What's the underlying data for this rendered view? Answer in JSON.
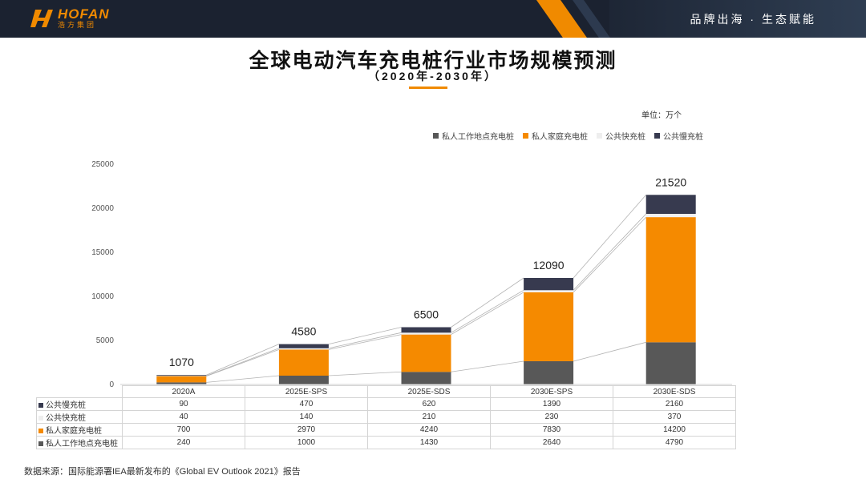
{
  "header": {
    "logo_text": "HOFAN",
    "logo_subtext": "浩方集团",
    "slogan": "品牌出海 · 生态赋能"
  },
  "colors": {
    "accent": "#f08a00",
    "header_bg": "#1b2230",
    "public_slow": "#373a4f",
    "public_fast": "#f2f2f2",
    "home": "#f58a00",
    "workplace": "#585858"
  },
  "unit_label": "单位：万个",
  "source_note": "数据来源：国际能源署IEA最新发布的《Global EV Outlook 2021》报告",
  "chart_data": {
    "type": "bar",
    "stacked": true,
    "title": "全球电动汽车充电桩行业市场规模预测",
    "subtitle": "（2020年-2030年）",
    "xlabel": "",
    "ylabel": "",
    "categories": [
      "2020A",
      "2025E-SPS",
      "2025E-SDS",
      "2030E-SPS",
      "2030E-SDS"
    ],
    "ylim": [
      0,
      25000
    ],
    "yticks": [
      "0",
      "5000",
      "10000",
      "15000",
      "20000",
      "25000"
    ],
    "legend_order": [
      "私人工作地点充电桩",
      "私人家庭充电桩",
      "公共快充桩",
      "公共慢充桩"
    ],
    "legend_placement": "top-right",
    "grid": false,
    "totals": [
      1070,
      4580,
      6500,
      12090,
      21520
    ],
    "series": [
      {
        "name": "私人工作地点充电桩",
        "color": "#585858",
        "values": [
          240,
          1000,
          1430,
          2640,
          4790
        ]
      },
      {
        "name": "私人家庭充电桩",
        "color": "#f58a00",
        "values": [
          700,
          2970,
          4240,
          7830,
          14200
        ]
      },
      {
        "name": "公共快充桩",
        "color": "#f2f2f2",
        "values": [
          40,
          140,
          210,
          230,
          370
        ]
      },
      {
        "name": "公共慢充桩",
        "color": "#373a4f",
        "values": [
          90,
          470,
          620,
          1390,
          2160
        ]
      }
    ],
    "table_rows": [
      {
        "name": "公共慢充桩",
        "color": "#373a4f",
        "values": [
          "90",
          "470",
          "620",
          "1390",
          "2160"
        ]
      },
      {
        "name": "公共快充桩",
        "color": "#f2f2f2",
        "values": [
          "40",
          "140",
          "210",
          "230",
          "370"
        ]
      },
      {
        "name": "私人家庭充电桩",
        "color": "#f58a00",
        "values": [
          "700",
          "2970",
          "4240",
          "7830",
          "14200"
        ]
      },
      {
        "name": "私人工作地点充电桩",
        "color": "#585858",
        "values": [
          "240",
          "1000",
          "1430",
          "2640",
          "4790"
        ]
      }
    ]
  }
}
